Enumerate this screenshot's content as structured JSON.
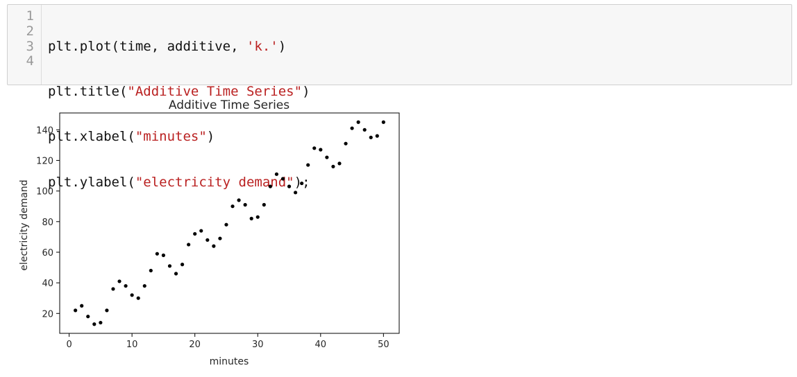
{
  "code_cell": {
    "line_numbers": [
      "1",
      "2",
      "3",
      "4"
    ],
    "lines": [
      {
        "before": "plt.plot(time, additive, ",
        "string": "'k.'",
        "after": ")"
      },
      {
        "before": "plt.title(",
        "string": "\"Additive Time Series\"",
        "after": ")"
      },
      {
        "before": "plt.xlabel(",
        "string": "\"minutes\"",
        "after": ")"
      },
      {
        "before": "plt.ylabel(",
        "string": "\"electricity demand\"",
        "after": ");"
      }
    ]
  },
  "chart_data": {
    "type": "scatter",
    "title": "Additive Time Series",
    "xlabel": "minutes",
    "ylabel": "electricity demand",
    "xlim": [
      -1.5,
      52.5
    ],
    "ylim": [
      7,
      151
    ],
    "xticks": [
      0,
      10,
      20,
      30,
      40,
      50
    ],
    "yticks": [
      20,
      40,
      60,
      80,
      100,
      120,
      140
    ],
    "grid": false,
    "marker_color": "#000000",
    "x": [
      1,
      2,
      3,
      4,
      5,
      6,
      7,
      8,
      9,
      10,
      11,
      12,
      13,
      14,
      15,
      16,
      17,
      18,
      19,
      20,
      21,
      22,
      23,
      24,
      25,
      26,
      27,
      28,
      29,
      30,
      31,
      32,
      33,
      34,
      35,
      36,
      37,
      38,
      39,
      40,
      41,
      42,
      43,
      44,
      45,
      46,
      47,
      48,
      49,
      50
    ],
    "y": [
      22,
      25,
      18,
      13,
      14,
      22,
      36,
      41,
      38,
      32,
      30,
      38,
      48,
      59,
      58,
      51,
      46,
      52,
      65,
      72,
      74,
      68,
      64,
      69,
      78,
      90,
      94,
      91,
      82,
      83,
      91,
      103,
      111,
      108,
      103,
      99,
      105,
      117,
      128,
      127,
      122,
      116,
      118,
      131,
      141,
      145,
      140,
      135,
      136,
      145
    ]
  }
}
